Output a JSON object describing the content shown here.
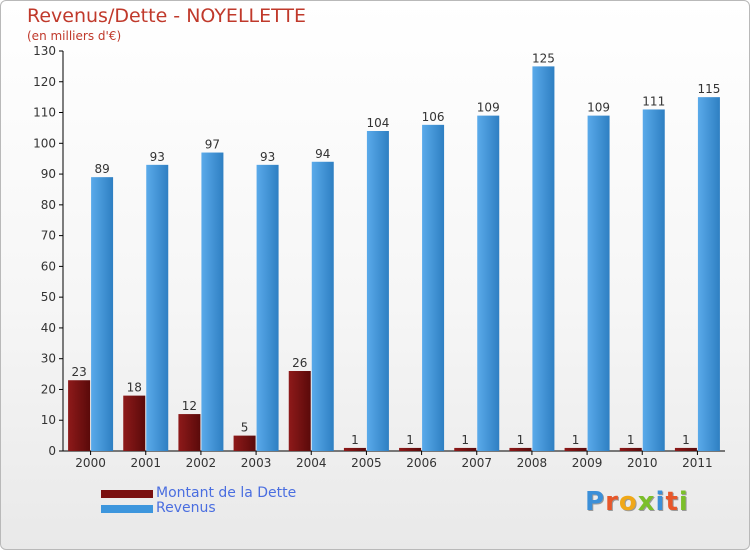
{
  "title": "Revenus/Dette - NOYELLETTE",
  "subtitle": "(en milliers d'€)",
  "brand": "Proxiti",
  "brand_letter_colors": [
    "#3b8fd8",
    "#e8572a",
    "#f0a818",
    "#7bbf2a",
    "#3b8fd8",
    "#e8572a",
    "#7bbf2a"
  ],
  "colors": {
    "dette": "#7a1010",
    "revenus": "#3d96dd",
    "title": "#c0392b",
    "legend_text": "#4a6ee0"
  },
  "chart_data": {
    "type": "bar",
    "title": "Revenus/Dette - NOYELLETTE",
    "ylabel": "(en milliers d'€)",
    "xlabel": "",
    "categories": [
      "2000",
      "2001",
      "2002",
      "2003",
      "2004",
      "2005",
      "2006",
      "2007",
      "2008",
      "2009",
      "2010",
      "2011"
    ],
    "series": [
      {
        "name": "Montant de la Dette",
        "values": [
          23,
          18,
          12,
          5,
          26,
          1,
          1,
          1,
          1,
          1,
          1,
          1
        ]
      },
      {
        "name": "Revenus",
        "values": [
          89,
          93,
          97,
          93,
          94,
          104,
          106,
          109,
          125,
          109,
          111,
          115
        ]
      }
    ],
    "ylim": [
      0,
      130
    ],
    "yticks": [
      0,
      10,
      20,
      30,
      40,
      50,
      60,
      70,
      80,
      90,
      100,
      110,
      120,
      130
    ],
    "grid": false,
    "legend_position": "bottom-left"
  }
}
